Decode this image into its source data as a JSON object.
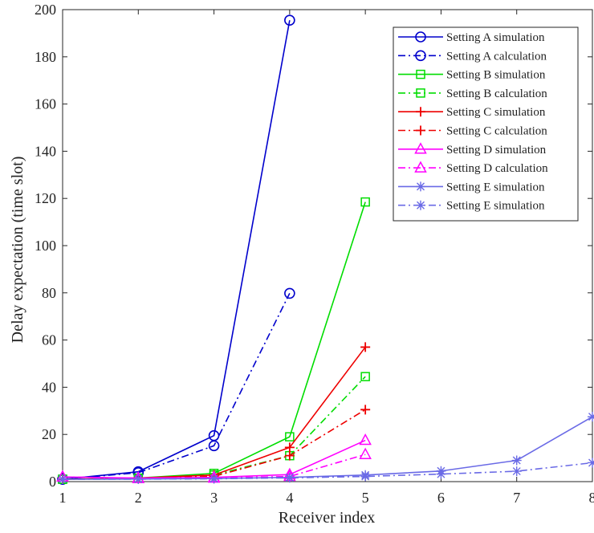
{
  "chart_data": {
    "type": "line",
    "xlabel": "Receiver index",
    "ylabel": "Delay expectation (time slot)",
    "xlim": [
      1,
      8
    ],
    "ylim": [
      0,
      200
    ],
    "xticks": [
      1,
      2,
      3,
      4,
      5,
      6,
      7,
      8
    ],
    "yticks": [
      0,
      20,
      40,
      60,
      80,
      100,
      120,
      140,
      160,
      180,
      200
    ],
    "grid": false,
    "legend_position": "top-right",
    "series": [
      {
        "name": "Setting A simulation",
        "color": "#0000cc",
        "dash": "solid",
        "marker": "circle",
        "x": [
          1,
          2,
          3,
          4
        ],
        "y": [
          1,
          4.2,
          19.5,
          195.5
        ]
      },
      {
        "name": "Setting A calculation",
        "color": "#0000cc",
        "dash": "dashdot",
        "marker": "circle",
        "x": [
          1,
          2,
          3,
          4
        ],
        "y": [
          1,
          3.8,
          15.2,
          79.8
        ]
      },
      {
        "name": "Setting B simulation",
        "color": "#00dd00",
        "dash": "solid",
        "marker": "square",
        "x": [
          1,
          2,
          3,
          4,
          5
        ],
        "y": [
          1,
          1.5,
          3.5,
          19,
          118.5
        ]
      },
      {
        "name": "Setting B calculation",
        "color": "#00dd00",
        "dash": "dashdot",
        "marker": "square",
        "x": [
          1,
          2,
          3,
          4,
          5
        ],
        "y": [
          1,
          1.4,
          2.8,
          11,
          44.5
        ]
      },
      {
        "name": "Setting C simulation",
        "color": "#ee0000",
        "dash": "solid",
        "marker": "plus",
        "x": [
          1,
          2,
          3,
          4,
          5
        ],
        "y": [
          1,
          1.5,
          2.8,
          14.5,
          57
        ]
      },
      {
        "name": "Setting C calculation",
        "color": "#ee0000",
        "dash": "dashdot",
        "marker": "plus",
        "x": [
          1,
          2,
          3,
          4,
          5
        ],
        "y": [
          1,
          1.3,
          2.2,
          11,
          30.5
        ]
      },
      {
        "name": "Setting D simulation",
        "color": "#ff00ff",
        "dash": "solid",
        "marker": "triangle",
        "x": [
          1,
          2,
          3,
          4,
          5
        ],
        "y": [
          2,
          1.5,
          1.8,
          3,
          17.5
        ]
      },
      {
        "name": "Setting D calculation",
        "color": "#ff00ff",
        "dash": "dashdot",
        "marker": "triangle",
        "x": [
          1,
          2,
          3,
          4,
          5
        ],
        "y": [
          2,
          1.3,
          1.5,
          2.2,
          11.5
        ]
      },
      {
        "name": "Setting E simulation",
        "color": "#6a6ae6",
        "dash": "solid",
        "marker": "star",
        "x": [
          1,
          2,
          3,
          4,
          5,
          6,
          7,
          8
        ],
        "y": [
          1,
          1.1,
          1.3,
          1.8,
          2.8,
          4.5,
          9,
          27.5
        ]
      },
      {
        "name": "Setting E simulation",
        "color": "#6a6ae6",
        "dash": "dashdot",
        "marker": "star",
        "x": [
          1,
          2,
          3,
          4,
          5,
          6,
          7,
          8
        ],
        "y": [
          1,
          1.05,
          1.2,
          1.6,
          2.2,
          3.2,
          4.4,
          8
        ]
      }
    ]
  }
}
